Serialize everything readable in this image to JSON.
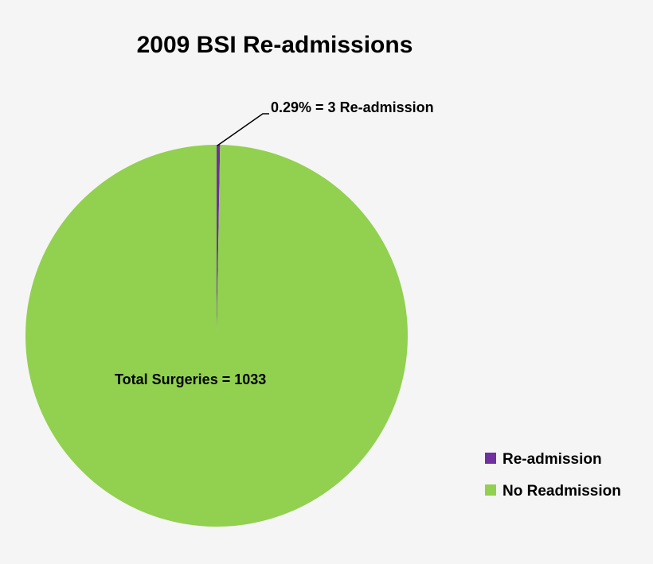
{
  "chart_data": {
    "type": "pie",
    "title": "2009 BSI Re-admissions",
    "categories": [
      "Re-admission",
      "No Readmission"
    ],
    "values": [
      3,
      1030
    ],
    "percentages": [
      0.29,
      99.71
    ],
    "colors": [
      "#7030a0",
      "#92d050"
    ],
    "data_labels": [
      "0.29% = 3 Re-admission",
      "Total Surgeries = 1033"
    ],
    "legend": {
      "placement": "bottom-right",
      "entries": [
        "Re-admission",
        "No Readmission"
      ]
    }
  }
}
